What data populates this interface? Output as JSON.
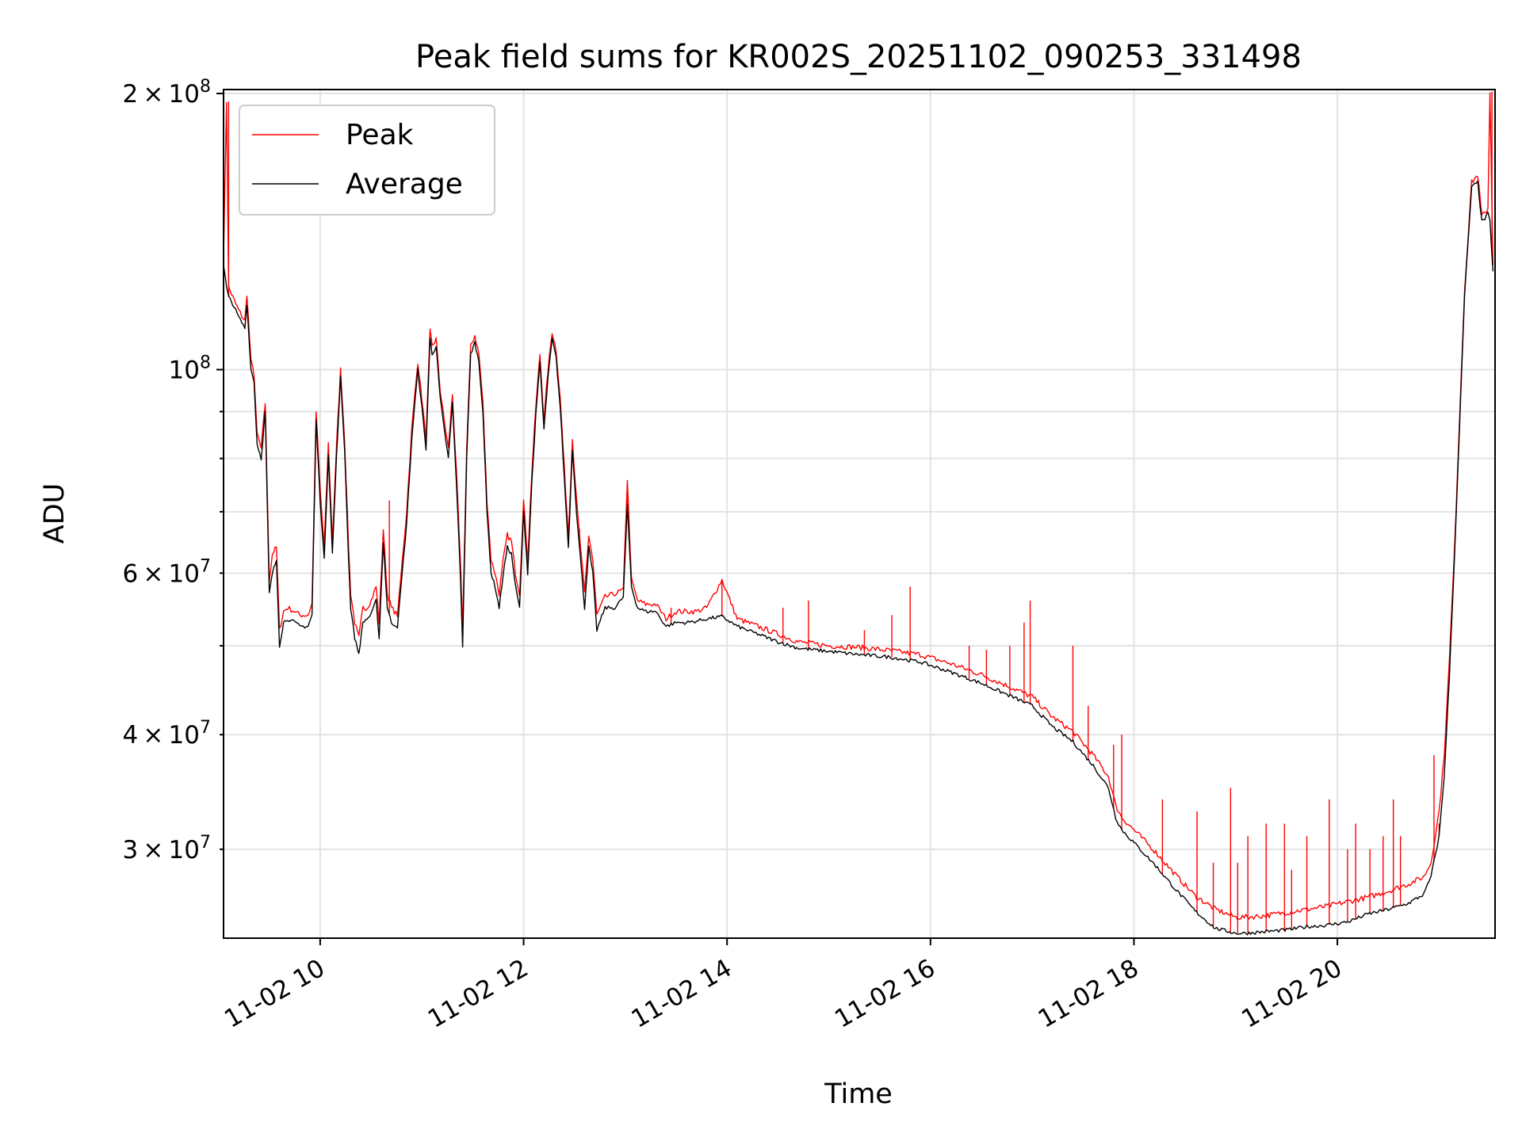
{
  "chart_data": {
    "type": "line",
    "title": "Peak field sums for KR002S_20251102_090253_331498",
    "xlabel": "Time",
    "ylabel": "ADU",
    "yscale": "log",
    "xlim": [
      9.05,
      21.55
    ],
    "ylim": [
      24000000,
      202000000
    ],
    "grid": true,
    "legend_position": "top-left",
    "colors": {
      "peak": "#ff0000",
      "average": "#000000",
      "grid": "#e3e3e3"
    },
    "x_ticks": [
      {
        "value": 10,
        "label": "11-02 10"
      },
      {
        "value": 12,
        "label": "11-02 12"
      },
      {
        "value": 14,
        "label": "11-02 14"
      },
      {
        "value": 16,
        "label": "11-02 16"
      },
      {
        "value": 18,
        "label": "11-02 18"
      },
      {
        "value": 20,
        "label": "11-02 20"
      }
    ],
    "y_major_ticks": [
      {
        "value": 100000000,
        "base": "10",
        "exp": "8"
      },
      {
        "value": 200000000,
        "mant": "2",
        "base": "10",
        "exp": "8"
      }
    ],
    "y_minor_ticks": [
      {
        "value": 30000000,
        "mant": "3",
        "base": "10",
        "exp": "7"
      },
      {
        "value": 40000000,
        "mant": "4",
        "base": "10",
        "exp": "7"
      },
      {
        "value": 60000000,
        "mant": "6",
        "base": "10",
        "exp": "7"
      }
    ],
    "y_minor_unlabeled": [
      50000000,
      70000000,
      80000000,
      90000000
    ],
    "times_in_hours_since_midnight": true,
    "series": [
      {
        "name": "Average",
        "x": [
          9.05,
          9.08,
          9.1,
          9.14,
          9.2,
          9.26,
          9.28,
          9.32,
          9.35,
          9.38,
          9.42,
          9.46,
          9.48,
          9.5,
          9.53,
          9.57,
          9.6,
          9.64,
          9.68,
          9.75,
          9.8,
          9.88,
          9.92,
          9.96,
          10.0,
          10.04,
          10.08,
          10.12,
          10.16,
          10.2,
          10.24,
          10.28,
          10.3,
          10.34,
          10.38,
          10.42,
          10.46,
          10.5,
          10.55,
          10.58,
          10.62,
          10.66,
          10.7,
          10.76,
          10.85,
          10.9,
          10.96,
          11.0,
          11.04,
          11.08,
          11.1,
          11.14,
          11.18,
          11.22,
          11.26,
          11.3,
          11.34,
          11.38,
          11.4,
          11.44,
          11.48,
          11.52,
          11.56,
          11.6,
          11.64,
          11.68,
          11.72,
          11.76,
          11.8,
          11.84,
          11.88,
          11.92,
          11.96,
          12.0,
          12.04,
          12.08,
          12.12,
          12.16,
          12.2,
          12.24,
          12.28,
          12.32,
          12.36,
          12.4,
          12.44,
          12.48,
          12.52,
          12.56,
          12.6,
          12.64,
          12.68,
          12.72,
          12.8,
          12.9,
          12.98,
          13.02,
          13.06,
          13.12,
          13.2,
          13.3,
          13.4,
          13.5,
          13.6,
          13.7,
          13.8,
          13.95,
          14.1,
          14.3,
          14.5,
          14.7,
          15.0,
          15.3,
          15.6,
          15.9,
          16.2,
          16.5,
          16.8,
          17.0,
          17.2,
          17.4,
          17.6,
          17.75,
          17.82,
          17.88,
          18.0,
          18.2,
          18.4,
          18.6,
          18.8,
          19.0,
          19.1,
          19.3,
          19.5,
          19.7,
          19.9,
          20.1,
          20.3,
          20.5,
          20.7,
          20.85,
          20.92,
          21.0,
          21.05,
          21.1,
          21.15,
          21.2,
          21.25,
          21.32,
          21.38,
          21.42,
          21.45,
          21.48,
          21.5,
          21.53
        ],
        "values": [
          130000000,
          123000000,
          120000000,
          118000000,
          114000000,
          111000000,
          118000000,
          100000000,
          97000000,
          83000000,
          80000000,
          90000000,
          71000000,
          57000000,
          60000000,
          62000000,
          50000000,
          53000000,
          53500000,
          53000000,
          52500000,
          52500000,
          54000000,
          88000000,
          72000000,
          62000000,
          81000000,
          63000000,
          80000000,
          98000000,
          82000000,
          62000000,
          55000000,
          51000000,
          49000000,
          53000000,
          53500000,
          54000000,
          56000000,
          51000000,
          65000000,
          55000000,
          53000000,
          52500000,
          68000000,
          84000000,
          100000000,
          91000000,
          82000000,
          108000000,
          104000000,
          106000000,
          93000000,
          86000000,
          80000000,
          92000000,
          75000000,
          59000000,
          50000000,
          80000000,
          104000000,
          107000000,
          102000000,
          90000000,
          70000000,
          60000000,
          58000000,
          55000000,
          60000000,
          64000000,
          63000000,
          58000000,
          55000000,
          70000000,
          60000000,
          75000000,
          89000000,
          102000000,
          86000000,
          98000000,
          108000000,
          103000000,
          91000000,
          76000000,
          64000000,
          82000000,
          70000000,
          62000000,
          55000000,
          64000000,
          60000000,
          52000000,
          55000000,
          55000000,
          56500000,
          71000000,
          58000000,
          55000000,
          54500000,
          54500000,
          52500000,
          53000000,
          53000000,
          53200000,
          53500000,
          53800000,
          52500000,
          51500000,
          50500000,
          49700000,
          49300000,
          48900000,
          48600000,
          48000000,
          46800000,
          45500000,
          44000000,
          43000000,
          40800000,
          39300000,
          37000000,
          35000000,
          32500000,
          31500000,
          30500000,
          28900000,
          27200000,
          25700000,
          24600000,
          24300000,
          24300000,
          24400000,
          24500000,
          24700000,
          24800000,
          25000000,
          25500000,
          25800000,
          26200000,
          26800000,
          28000000,
          31000000,
          36000000,
          46000000,
          62000000,
          86000000,
          120000000,
          158000000,
          160000000,
          145000000,
          146000000,
          148000000,
          145000000,
          128000000
        ]
      },
      {
        "name": "Peak",
        "x": [
          9.05,
          9.08,
          9.1,
          9.14,
          9.2,
          9.26,
          9.28,
          9.32,
          9.35,
          9.38,
          9.42,
          9.46,
          9.48,
          9.5,
          9.53,
          9.57,
          9.6,
          9.64,
          9.68,
          9.75,
          9.8,
          9.88,
          9.92,
          9.96,
          10.0,
          10.04,
          10.08,
          10.12,
          10.16,
          10.2,
          10.24,
          10.28,
          10.3,
          10.34,
          10.38,
          10.42,
          10.46,
          10.5,
          10.55,
          10.58,
          10.62,
          10.66,
          10.7,
          10.76,
          10.85,
          10.9,
          10.96,
          11.0,
          11.04,
          11.08,
          11.1,
          11.14,
          11.18,
          11.22,
          11.26,
          11.3,
          11.34,
          11.38,
          11.4,
          11.44,
          11.48,
          11.52,
          11.56,
          11.6,
          11.64,
          11.68,
          11.72,
          11.76,
          11.8,
          11.84,
          11.88,
          11.92,
          11.96,
          12.0,
          12.04,
          12.08,
          12.12,
          12.16,
          12.2,
          12.24,
          12.28,
          12.32,
          12.36,
          12.4,
          12.44,
          12.48,
          12.52,
          12.56,
          12.6,
          12.64,
          12.68,
          12.72,
          12.8,
          12.9,
          12.98,
          13.02,
          13.06,
          13.12,
          13.2,
          13.3,
          13.4,
          13.5,
          13.6,
          13.7,
          13.8,
          13.95,
          14.1,
          14.3,
          14.5,
          14.7,
          15.0,
          15.3,
          15.6,
          15.9,
          16.2,
          16.5,
          16.8,
          17.0,
          17.2,
          17.4,
          17.6,
          17.75,
          17.82,
          17.88,
          18.0,
          18.2,
          18.4,
          18.6,
          18.8,
          19.0,
          19.1,
          19.3,
          19.5,
          19.7,
          19.9,
          20.1,
          20.3,
          20.5,
          20.7,
          20.85,
          20.92,
          21.0,
          21.05,
          21.1,
          21.15,
          21.2,
          21.25,
          21.32,
          21.38,
          21.42,
          21.45,
          21.48,
          21.5,
          21.53
        ],
        "values": [
          133000000,
          196000000,
          123000000,
          120000000,
          116000000,
          113000000,
          121000000,
          102000000,
          99000000,
          85000000,
          82000000,
          92000000,
          73000000,
          59000000,
          63000000,
          64000000,
          52000000,
          54500000,
          55000000,
          54500000,
          54000000,
          54000000,
          55500000,
          90000000,
          74000000,
          64000000,
          83000000,
          65000000,
          82000000,
          100000000,
          84000000,
          64000000,
          57000000,
          53000000,
          51000000,
          55000000,
          55000000,
          56000000,
          58000000,
          53000000,
          67000000,
          57000000,
          55000000,
          54000000,
          70000000,
          86000000,
          102000000,
          93000000,
          84000000,
          110000000,
          106000000,
          108000000,
          95000000,
          88000000,
          82000000,
          94000000,
          77000000,
          61000000,
          52000000,
          82000000,
          106000000,
          109000000,
          104000000,
          92000000,
          72000000,
          62000000,
          60000000,
          57000000,
          62000000,
          66000000,
          65000000,
          60000000,
          57000000,
          72000000,
          62000000,
          77000000,
          91000000,
          104000000,
          88000000,
          100000000,
          110000000,
          105000000,
          93000000,
          78000000,
          66000000,
          84000000,
          72000000,
          64000000,
          57000000,
          66000000,
          62000000,
          54000000,
          56500000,
          57000000,
          57500000,
          76000000,
          59000000,
          56000000,
          55500000,
          55500000,
          53500000,
          54500000,
          54500000,
          54500000,
          55000000,
          59000000,
          53500000,
          52500000,
          51500000,
          50500000,
          50000000,
          49800000,
          49400000,
          48900000,
          47800000,
          46500000,
          45000000,
          44000000,
          41800000,
          40300000,
          38000000,
          36000000,
          33500000,
          32500000,
          31500000,
          29900000,
          28200000,
          26700000,
          25800000,
          25300000,
          25300000,
          25400000,
          25600000,
          25800000,
          26000000,
          26300000,
          26600000,
          27000000,
          27500000,
          28000000,
          29000000,
          33000000,
          38000000,
          48000000,
          63000000,
          88000000,
          122000000,
          160000000,
          163000000,
          147000000,
          148000000,
          150000000,
          201000000,
          130000000
        ]
      }
    ],
    "spikes": {
      "description": "thin red spikes of the Peak series above the Average",
      "x": [
        9.1,
        10.68,
        12.55,
        13.02,
        13.45,
        13.95,
        14.55,
        14.8,
        15.35,
        15.62,
        15.8,
        16.38,
        16.55,
        16.78,
        16.92,
        16.98,
        17.4,
        17.55,
        17.8,
        17.88,
        18.28,
        18.62,
        18.78,
        18.95,
        19.02,
        19.12,
        19.3,
        19.48,
        19.55,
        19.7,
        19.92,
        20.1,
        20.18,
        20.32,
        20.45,
        20.55,
        20.62,
        20.95,
        21.0,
        21.52
      ],
      "values": [
        196000000,
        72000000,
        67000000,
        75000000,
        55000000,
        59000000,
        55000000,
        56000000,
        52000000,
        54000000,
        58000000,
        50000000,
        49500000,
        50000000,
        53000000,
        56000000,
        50000000,
        43000000,
        39000000,
        40000000,
        34000000,
        33000000,
        29000000,
        35000000,
        29000000,
        31000000,
        32000000,
        32000000,
        28500000,
        31000000,
        34000000,
        30000000,
        32000000,
        30000000,
        31000000,
        34000000,
        31000000,
        38000000,
        32000000,
        201000000
      ]
    }
  },
  "legend": {
    "items": [
      {
        "label": "Peak",
        "color": "#ff0000"
      },
      {
        "label": "Average",
        "color": "#000000"
      }
    ]
  }
}
